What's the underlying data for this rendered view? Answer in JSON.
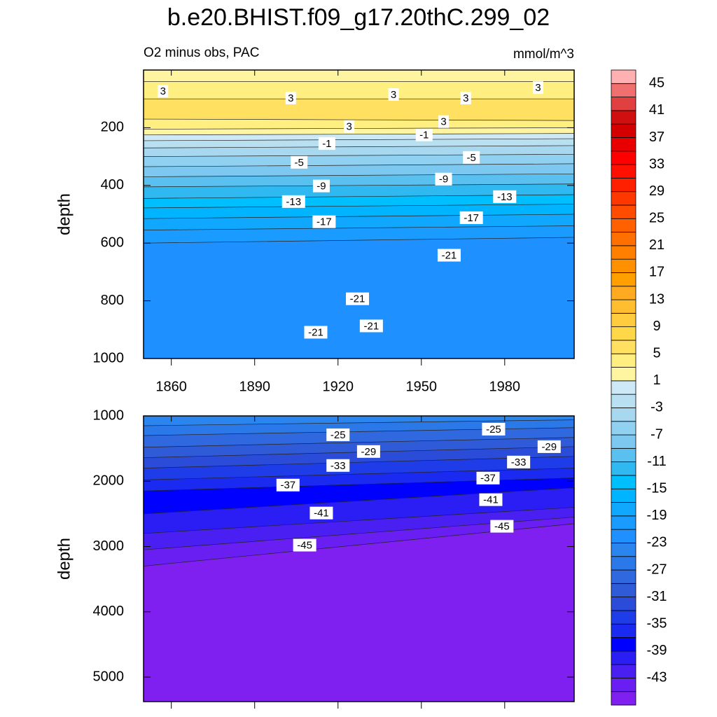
{
  "title": "b.e20.BHIST.f09_g17.20thC.299_02",
  "colorbar": {
    "levels": [
      -45,
      -43,
      -41,
      -39,
      -37,
      -35,
      -33,
      -31,
      -29,
      -27,
      -25,
      -23,
      -21,
      -19,
      -17,
      -15,
      -13,
      -11,
      -9,
      -7,
      -5,
      -3,
      -1,
      1,
      3,
      5,
      7,
      9,
      11,
      13,
      15,
      17,
      19,
      21,
      23,
      25,
      27,
      29,
      31,
      33,
      35,
      37,
      39,
      41,
      43,
      45
    ],
    "colors": [
      "#8020f0",
      "#6a1ff2",
      "#4a20f2",
      "#2a1ef5",
      "#0000ff",
      "#1a2af0",
      "#1e3ce8",
      "#2a4cd8",
      "#2f5ad8",
      "#3068e0",
      "#2b78e8",
      "#2a85ef",
      "#1e90ff",
      "#1a9bff",
      "#10a8ff",
      "#00b4ff",
      "#00bfff",
      "#30b8f0",
      "#5ac0f0",
      "#7cc8f0",
      "#90d0f0",
      "#a8d8f0",
      "#b8e0f0",
      "#cde8f7",
      "#fff5a0",
      "#ffee80",
      "#ffe060",
      "#ffd84a",
      "#ffcc40",
      "#ffbe30",
      "#ffaa20",
      "#ffa000",
      "#ff9000",
      "#ff8000",
      "#ff7000",
      "#ff6000",
      "#ff4c00",
      "#ff3800",
      "#ff2000",
      "#ff1000",
      "#ff0000",
      "#e80000",
      "#d40000",
      "#d01010",
      "#e04040",
      "#f07070",
      "#ffb0b0"
    ],
    "ticks": [
      -43,
      -39,
      -35,
      -31,
      -27,
      -23,
      -19,
      -15,
      -11,
      -7,
      -3,
      1,
      5,
      9,
      13,
      17,
      21,
      25,
      29,
      33,
      37,
      41,
      45
    ]
  },
  "chart_data": [
    {
      "type": "contour",
      "subtitle": "O2 minus obs, PAC",
      "units": "mmol/m^3",
      "ylabel": "depth",
      "xlim": [
        1850,
        2005
      ],
      "ylim": [
        0,
        1000
      ],
      "xticks": [
        1860,
        1890,
        1920,
        1950,
        1980
      ],
      "yticks": [
        200,
        400,
        600,
        800,
        1000
      ],
      "xtick_labels": true,
      "contours": [
        {
          "level": 3,
          "depth": [
            40,
            40
          ]
        },
        {
          "level": 5,
          "depth": [
            100,
            100
          ]
        },
        {
          "level": 5,
          "depth": [
            170,
            175
          ]
        },
        {
          "level": 3,
          "depth": [
            205,
            200
          ]
        },
        {
          "level": 1,
          "depth": [
            225,
            220
          ]
        },
        {
          "level": -1,
          "depth": [
            245,
            238
          ]
        },
        {
          "level": -3,
          "depth": [
            270,
            262
          ]
        },
        {
          "level": -5,
          "depth": [
            300,
            292
          ]
        },
        {
          "level": -7,
          "depth": [
            335,
            325
          ]
        },
        {
          "level": -9,
          "depth": [
            370,
            360
          ]
        },
        {
          "level": -11,
          "depth": [
            405,
            395
          ]
        },
        {
          "level": -13,
          "depth": [
            445,
            432
          ]
        },
        {
          "level": -15,
          "depth": [
            478,
            465
          ]
        },
        {
          "level": -17,
          "depth": [
            515,
            500
          ]
        },
        {
          "level": -19,
          "depth": [
            555,
            540
          ]
        },
        {
          "level": -21,
          "depth": [
            600,
            580
          ]
        }
      ],
      "contour_labels": [
        {
          "value": 3,
          "x": 1857,
          "depth": 73
        },
        {
          "value": 3,
          "x": 1903,
          "depth": 97
        },
        {
          "value": 3,
          "x": 1940,
          "depth": 85
        },
        {
          "value": 3,
          "x": 1966,
          "depth": 97
        },
        {
          "value": 3,
          "x": 1992,
          "depth": 61
        },
        {
          "value": 3,
          "x": 1924,
          "depth": 196
        },
        {
          "value": 3,
          "x": 1958,
          "depth": 179
        },
        {
          "value": -1,
          "x": 1916,
          "depth": 255
        },
        {
          "value": -1,
          "x": 1951,
          "depth": 225
        },
        {
          "value": -5,
          "x": 1906,
          "depth": 320
        },
        {
          "value": -5,
          "x": 1968,
          "depth": 303
        },
        {
          "value": -9,
          "x": 1914,
          "depth": 402
        },
        {
          "value": -9,
          "x": 1958,
          "depth": 378
        },
        {
          "value": -13,
          "x": 1904,
          "depth": 456
        },
        {
          "value": -13,
          "x": 1980,
          "depth": 439
        },
        {
          "value": -17,
          "x": 1915,
          "depth": 526
        },
        {
          "value": -17,
          "x": 1968,
          "depth": 512
        },
        {
          "value": -21,
          "x": 1960,
          "depth": 642
        },
        {
          "value": -21,
          "x": 1927,
          "depth": 793
        },
        {
          "value": -21,
          "x": 1912,
          "depth": 909
        },
        {
          "value": -21,
          "x": 1932,
          "depth": 887
        }
      ]
    },
    {
      "type": "contour",
      "ylabel": "depth",
      "xlim": [
        1850,
        2005
      ],
      "ylim": [
        1000,
        5375
      ],
      "xticks": [
        1860,
        1890,
        1920,
        1950,
        1980
      ],
      "yticks": [
        1000,
        2000,
        3000,
        4000,
        5000
      ],
      "xtick_labels": false,
      "contours": [
        {
          "level": -25,
          "depth": [
            1150,
            1060
          ]
        },
        {
          "level": -27,
          "depth": [
            1300,
            1180
          ]
        },
        {
          "level": -29,
          "depth": [
            1480,
            1330
          ]
        },
        {
          "level": -31,
          "depth": [
            1640,
            1470
          ]
        },
        {
          "level": -33,
          "depth": [
            1800,
            1620
          ]
        },
        {
          "level": -35,
          "depth": [
            1980,
            1800
          ]
        },
        {
          "level": -37,
          "depth": [
            2150,
            1950
          ]
        },
        {
          "level": -39,
          "depth": [
            2500,
            2100
          ]
        },
        {
          "level": -41,
          "depth": [
            2800,
            2400
          ]
        },
        {
          "level": -43,
          "depth": [
            3050,
            2550
          ]
        },
        {
          "level": -45,
          "depth": [
            3300,
            2650
          ]
        }
      ],
      "contour_labels": [
        {
          "value": -25,
          "x": 1920,
          "depth": 1289
        },
        {
          "value": -25,
          "x": 1976,
          "depth": 1203
        },
        {
          "value": -29,
          "x": 1931,
          "depth": 1545
        },
        {
          "value": -29,
          "x": 1996,
          "depth": 1471
        },
        {
          "value": -33,
          "x": 1920,
          "depth": 1759
        },
        {
          "value": -33,
          "x": 1985,
          "depth": 1706
        },
        {
          "value": -37,
          "x": 1902,
          "depth": 2059
        },
        {
          "value": -37,
          "x": 1974,
          "depth": 1952
        },
        {
          "value": -41,
          "x": 1914,
          "depth": 2487
        },
        {
          "value": -41,
          "x": 1975,
          "depth": 2283
        },
        {
          "value": -45,
          "x": 1908,
          "depth": 2979
        },
        {
          "value": -45,
          "x": 1979,
          "depth": 2690
        }
      ]
    }
  ]
}
